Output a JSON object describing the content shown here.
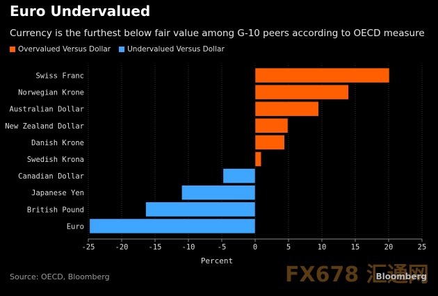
{
  "title": "Euro Undervalued",
  "subtitle": "Currency is the furthest below fair value among G-10 peers according to OECD measure",
  "source": "Source: OECD, Bloomberg",
  "brand": "Bloomberg",
  "watermark": "FX678 汇通网",
  "colors": {
    "overvalued": "#ff5f00",
    "undervalued": "#3ea6ff",
    "grid": "#333333"
  },
  "chart_data": {
    "type": "bar",
    "orientation": "horizontal",
    "title": "Euro Undervalued",
    "xlabel": "Percent",
    "ylabel": "",
    "xlim": [
      -25,
      25
    ],
    "xticks": [
      -25,
      -20,
      -15,
      -10,
      -5,
      0,
      5,
      10,
      15,
      20,
      25
    ],
    "grid": true,
    "legend_placement": "top-left",
    "legend": [
      "Overvalued Versus Dollar",
      "Undervalued Versus Dollar"
    ],
    "categories": [
      "Swiss Franc",
      "Norwegian Krone",
      "Australian Dollar",
      "New Zealand Dollar",
      "Danish Krone",
      "Swedish Krona",
      "Canadian Dollar",
      "Japanese Yen",
      "British Pound",
      "Euro"
    ],
    "values": [
      20.1,
      14.0,
      9.5,
      4.9,
      4.4,
      0.9,
      -4.8,
      -11.0,
      -16.4,
      -24.8
    ]
  }
}
